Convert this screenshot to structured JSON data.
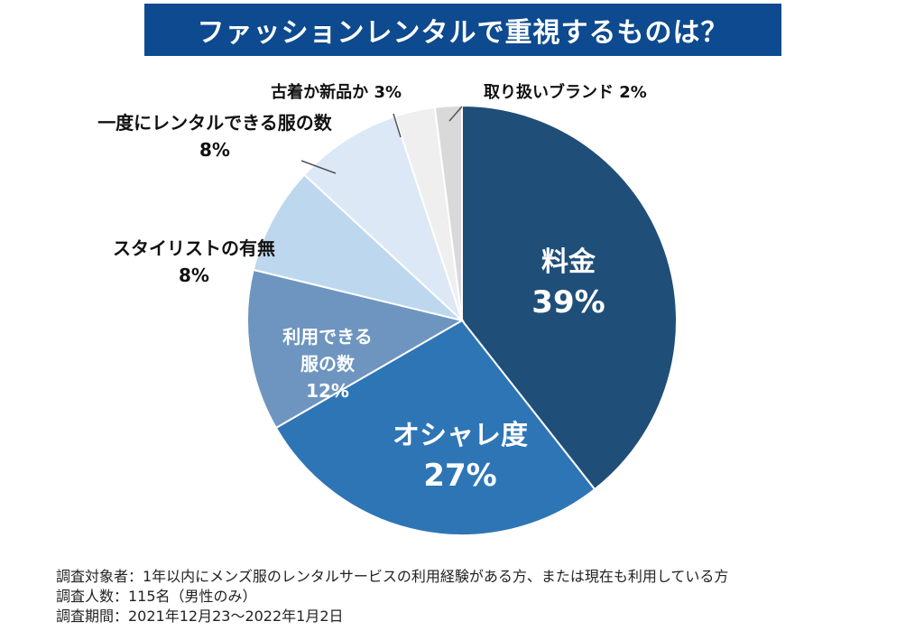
{
  "title": "ファッションレンタルで重視するものは？",
  "colors": {
    "banner": "#0d4a8f",
    "slices": [
      "#1f4e79",
      "#2e75b6",
      "#6d95bf",
      "#bdd7ee",
      "#dce8f5",
      "#efefef",
      "#d9d9d9"
    ],
    "inside_label": "#ffffff",
    "outside_label": "#111111",
    "leader": "#555555"
  },
  "chart_data": {
    "type": "pie",
    "slices": [
      {
        "label_lines": [
          "料金"
        ],
        "value": 39,
        "value_label": "39%",
        "label_position": "inside"
      },
      {
        "label_lines": [
          "オシャレ度"
        ],
        "value": 27,
        "value_label": "27%",
        "label_position": "inside"
      },
      {
        "label_lines": [
          "利用できる",
          "服の数"
        ],
        "value": 12,
        "value_label": "12%",
        "label_position": "inside"
      },
      {
        "label_lines": [
          "スタイリストの有無"
        ],
        "value": 8,
        "value_label": "8%",
        "label_position": "outside"
      },
      {
        "label_lines": [
          "一度にレンタルできる服の数"
        ],
        "value": 8,
        "value_label": "8%",
        "label_position": "outside"
      },
      {
        "label_lines": [
          "古着か新品か"
        ],
        "value": 3,
        "value_label": "3%",
        "label_position": "outside-inline"
      },
      {
        "label_lines": [
          "取り扱いブランド"
        ],
        "value": 2,
        "value_label": "2%",
        "label_position": "outside-inline"
      }
    ],
    "start": "12 o'clock",
    "direction": "clockwise",
    "legend": "none"
  },
  "footnotes": [
    "調査対象者：1年以内にメンズ服のレンタルサービスの利用経験がある方、または現在も利用している方",
    "調査人数：115名（男性のみ）",
    "調査期間：2021年12月23〜2022年1月2日"
  ]
}
